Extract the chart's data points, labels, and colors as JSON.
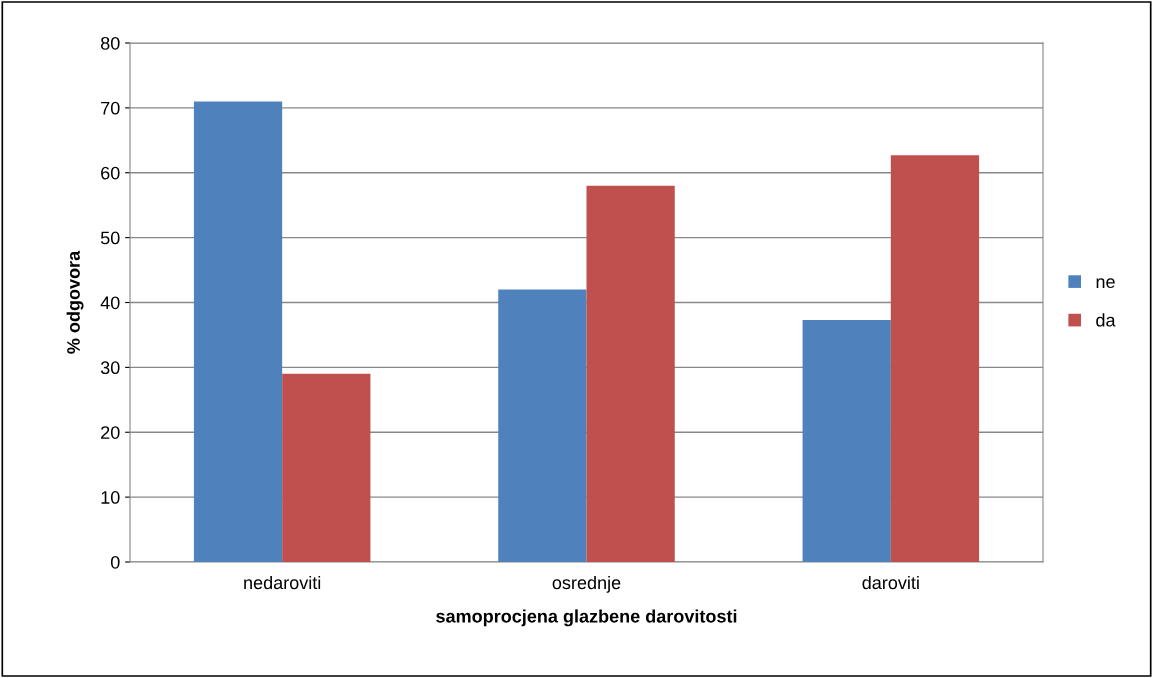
{
  "chart_data": {
    "type": "bar",
    "xlabel": "samoprocjena glazbene darovitosti",
    "ylabel": "% odgovora",
    "categories": [
      "nedaroviti",
      "osrednje",
      "daroviti"
    ],
    "series": [
      {
        "name": "ne",
        "color": "#4f81bd",
        "values": [
          71,
          42,
          37.3
        ]
      },
      {
        "name": "da",
        "color": "#c0504d",
        "values": [
          29,
          58,
          62.7
        ]
      }
    ],
    "ylim": [
      0,
      80
    ],
    "yticks": [
      0,
      10,
      20,
      30,
      40,
      50,
      60,
      70,
      80
    ],
    "grid": "y",
    "legend": "right"
  }
}
